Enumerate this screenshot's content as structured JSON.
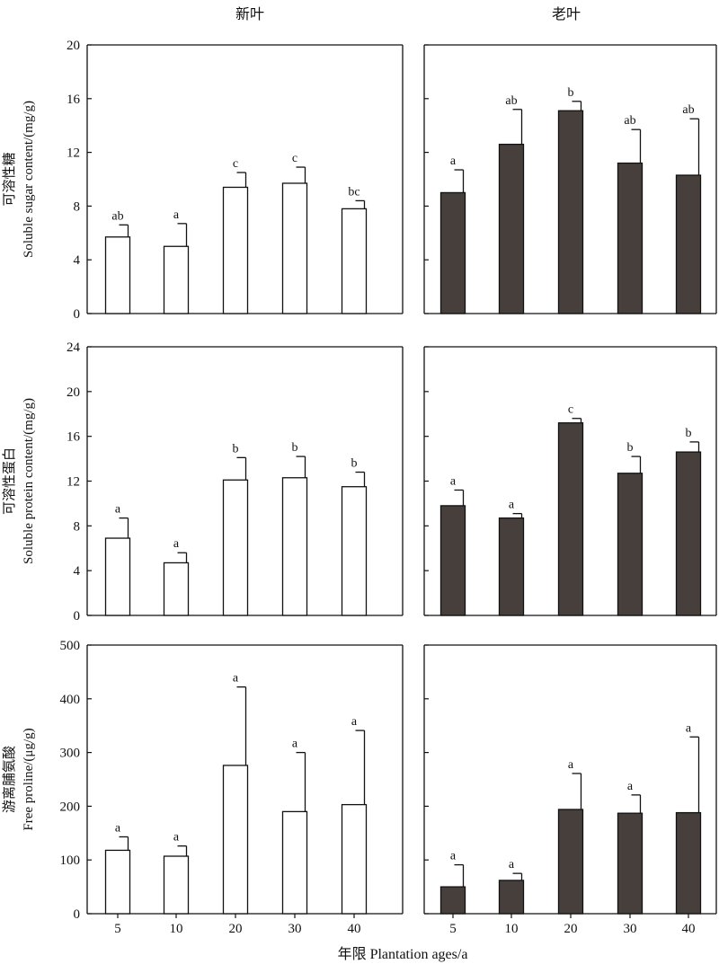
{
  "column_titles": [
    "新叶",
    "老叶"
  ],
  "x_axis_title": "年限 Plantation ages/a",
  "colors": {
    "new_leaf_fill": "#ffffff",
    "old_leaf_fill": "#473f3c",
    "axis": "#111111"
  },
  "chart_data": [
    {
      "type": "bar",
      "panel": "soluble-sugar-new-leaf",
      "categories": [
        "5",
        "10",
        "20",
        "30",
        "40"
      ],
      "values": [
        5.7,
        5.0,
        9.4,
        9.7,
        7.8
      ],
      "errors": [
        0.9,
        1.7,
        1.1,
        1.2,
        0.6
      ],
      "significance": [
        "ab",
        "a",
        "c",
        "c",
        "bc"
      ],
      "ylim": [
        0,
        20
      ],
      "yticks": [
        0,
        4,
        8,
        12,
        16,
        20
      ],
      "ylabel_cn": "可溶性糖",
      "ylabel_en": "Soluble sugar content/(mg/g)"
    },
    {
      "type": "bar",
      "panel": "soluble-sugar-old-leaf",
      "categories": [
        "5",
        "10",
        "20",
        "30",
        "40"
      ],
      "values": [
        9.0,
        12.6,
        15.1,
        11.2,
        10.3
      ],
      "errors": [
        1.7,
        2.6,
        0.7,
        2.5,
        4.2
      ],
      "significance": [
        "a",
        "ab",
        "b",
        "ab",
        "ab"
      ],
      "ylim": [
        0,
        20
      ],
      "yticks": [
        0,
        4,
        8,
        12,
        16,
        20
      ]
    },
    {
      "type": "bar",
      "panel": "soluble-protein-new-leaf",
      "categories": [
        "5",
        "10",
        "20",
        "30",
        "40"
      ],
      "values": [
        6.9,
        4.7,
        12.1,
        12.3,
        11.5
      ],
      "errors": [
        1.8,
        0.9,
        2.0,
        1.9,
        1.3
      ],
      "significance": [
        "a",
        "a",
        "b",
        "b",
        "b"
      ],
      "ylim": [
        0,
        24
      ],
      "yticks": [
        0,
        4,
        8,
        12,
        16,
        20,
        24
      ],
      "ylabel_cn": "可溶性蛋白",
      "ylabel_en": "Soluble protein content/(mg/g)"
    },
    {
      "type": "bar",
      "panel": "soluble-protein-old-leaf",
      "categories": [
        "5",
        "10",
        "20",
        "30",
        "40"
      ],
      "values": [
        9.8,
        8.7,
        17.2,
        12.7,
        14.6
      ],
      "errors": [
        1.4,
        0.4,
        0.4,
        1.5,
        0.9
      ],
      "significance": [
        "a",
        "a",
        "c",
        "b",
        "b"
      ],
      "ylim": [
        0,
        24
      ],
      "yticks": [
        0,
        4,
        8,
        12,
        16,
        20,
        24
      ]
    },
    {
      "type": "bar",
      "panel": "free-proline-new-leaf",
      "categories": [
        "5",
        "10",
        "20",
        "30",
        "40"
      ],
      "values": [
        118,
        107,
        276,
        190,
        203
      ],
      "errors": [
        25,
        19,
        146,
        110,
        138
      ],
      "significance": [
        "a",
        "a",
        "a",
        "a",
        "a"
      ],
      "ylim": [
        0,
        500
      ],
      "yticks": [
        0,
        100,
        200,
        300,
        400,
        500
      ],
      "ylabel_cn": "游离脯氨酸",
      "ylabel_en": "Free proline/(μg/g)"
    },
    {
      "type": "bar",
      "panel": "free-proline-old-leaf",
      "categories": [
        "5",
        "10",
        "20",
        "30",
        "40"
      ],
      "values": [
        50,
        62,
        194,
        187,
        188
      ],
      "errors": [
        41,
        13,
        67,
        34,
        141
      ],
      "significance": [
        "a",
        "a",
        "a",
        "a",
        "a"
      ],
      "ylim": [
        0,
        500
      ],
      "yticks": [
        0,
        100,
        200,
        300,
        400,
        500
      ]
    }
  ]
}
